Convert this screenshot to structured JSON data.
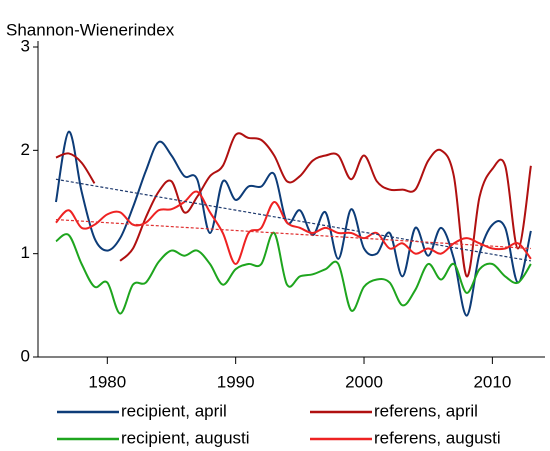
{
  "chart_data": {
    "type": "line",
    "title": "Shannon-Wienerindex",
    "x": [
      1976,
      1977,
      1978,
      1979,
      1980,
      1981,
      1982,
      1983,
      1984,
      1985,
      1986,
      1987,
      1988,
      1989,
      1990,
      1991,
      1992,
      1993,
      1994,
      1995,
      1996,
      1997,
      1998,
      1999,
      2000,
      2001,
      2002,
      2003,
      2004,
      2005,
      2006,
      2007,
      2008,
      2009,
      2010,
      2011,
      2012,
      2013
    ],
    "series": [
      {
        "name": "recipient, april",
        "color": "#0d3c78",
        "values": [
          1.5,
          2.18,
          1.6,
          1.15,
          1.03,
          1.15,
          1.45,
          1.8,
          2.08,
          1.95,
          1.75,
          1.72,
          1.2,
          1.7,
          1.52,
          1.65,
          1.65,
          1.77,
          1.3,
          1.42,
          1.18,
          1.4,
          0.95,
          1.43,
          1.05,
          1.0,
          1.2,
          0.78,
          1.25,
          0.98,
          1.25,
          0.95,
          0.4,
          1.0,
          1.28,
          1.25,
          0.72,
          1.22
        ]
      },
      {
        "name": "referens, april",
        "color": "#b01010",
        "values": [
          1.93,
          1.97,
          1.88,
          1.68,
          null,
          0.93,
          1.05,
          1.35,
          1.6,
          1.7,
          1.4,
          1.55,
          1.75,
          1.85,
          2.15,
          2.12,
          2.1,
          1.95,
          1.7,
          1.75,
          1.9,
          1.95,
          1.95,
          1.72,
          1.95,
          1.7,
          1.62,
          1.62,
          1.62,
          1.9,
          2.0,
          1.75,
          0.78,
          1.55,
          1.82,
          1.85,
          1.05,
          1.85
        ]
      },
      {
        "name": "recipient, augusti",
        "color": "#1ea51e",
        "values": [
          1.12,
          1.18,
          0.9,
          0.68,
          0.72,
          0.42,
          0.7,
          0.72,
          0.92,
          1.03,
          0.98,
          1.03,
          0.9,
          0.7,
          0.85,
          0.9,
          0.9,
          1.2,
          0.7,
          0.78,
          0.8,
          0.85,
          0.9,
          0.45,
          0.68,
          0.75,
          0.72,
          0.5,
          0.65,
          0.9,
          0.75,
          0.9,
          0.62,
          0.85,
          0.9,
          0.78,
          0.72,
          0.9
        ]
      },
      {
        "name": "referens, augusti",
        "color": "#ee2222",
        "values": [
          1.3,
          1.42,
          1.25,
          1.28,
          1.38,
          1.4,
          1.28,
          1.3,
          1.42,
          1.43,
          1.5,
          1.6,
          1.4,
          1.2,
          0.9,
          1.2,
          1.25,
          1.5,
          1.3,
          1.25,
          1.2,
          1.25,
          1.2,
          1.2,
          1.15,
          1.2,
          1.05,
          1.1,
          1.0,
          1.05,
          1.0,
          1.1,
          1.15,
          1.1,
          1.05,
          1.05,
          1.1,
          0.95
        ]
      }
    ],
    "trend_lines": [
      {
        "color": "#1f3a6e",
        "x": [
          1976,
          2013
        ],
        "values": [
          1.72,
          0.93
        ]
      },
      {
        "color": "#e03030",
        "x": [
          1976,
          2013
        ],
        "values": [
          1.33,
          1.05
        ]
      }
    ],
    "xlim": [
      1974.6,
      2014.1
    ],
    "xticks": [
      1980,
      1990,
      2000,
      2010
    ],
    "ylim": [
      0,
      3
    ],
    "yticks": [
      0,
      1,
      2,
      3
    ],
    "grid": false
  }
}
